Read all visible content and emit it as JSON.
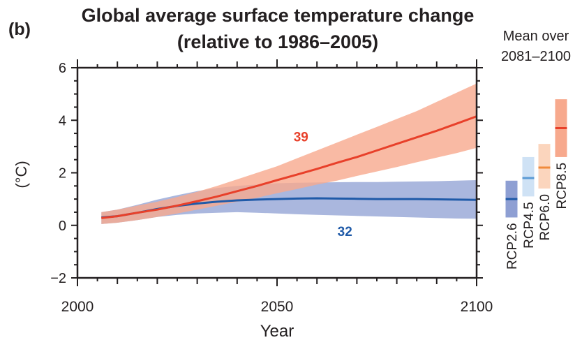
{
  "chart_data": {
    "type": "line",
    "panel_label": "(b)",
    "title": "Global average surface temperature change",
    "subtitle": "(relative to 1986–2005)",
    "xlabel": "Year",
    "ylabel": "(°C)",
    "xlim": [
      2000,
      2100
    ],
    "ylim": [
      -2,
      6
    ],
    "xticks": [
      2000,
      2050,
      2100
    ],
    "xtick_labels": [
      "2000",
      "2050",
      "2100"
    ],
    "yticks": [
      -2,
      0,
      2,
      4,
      6
    ],
    "ytick_labels": [
      "−2",
      "0",
      "2",
      "4",
      "6"
    ],
    "series": [
      {
        "name": "RCP8.5",
        "color": "#e8402a",
        "band_color": "#f7a98d",
        "model_count": "39",
        "x": [
          2006,
          2010,
          2015,
          2020,
          2025,
          2030,
          2035,
          2040,
          2045,
          2050,
          2055,
          2060,
          2065,
          2070,
          2075,
          2080,
          2085,
          2090,
          2095,
          2100
        ],
        "mean": [
          0.28,
          0.35,
          0.48,
          0.6,
          0.75,
          0.92,
          1.1,
          1.3,
          1.5,
          1.72,
          1.93,
          2.15,
          2.38,
          2.6,
          2.85,
          3.1,
          3.35,
          3.6,
          3.87,
          4.15
        ],
        "lower": [
          0.05,
          0.1,
          0.2,
          0.32,
          0.45,
          0.6,
          0.75,
          0.9,
          1.05,
          1.22,
          1.38,
          1.55,
          1.7,
          1.88,
          2.05,
          2.22,
          2.4,
          2.58,
          2.75,
          2.95
        ],
        "upper": [
          0.5,
          0.6,
          0.75,
          0.9,
          1.08,
          1.28,
          1.5,
          1.75,
          2.0,
          2.25,
          2.55,
          2.85,
          3.15,
          3.45,
          3.75,
          4.05,
          4.35,
          4.7,
          5.05,
          5.4
        ]
      },
      {
        "name": "RCP2.6",
        "color": "#1f5aa8",
        "band_color": "#8e9fd3",
        "model_count": "32",
        "x": [
          2006,
          2010,
          2015,
          2020,
          2025,
          2030,
          2035,
          2040,
          2045,
          2050,
          2055,
          2060,
          2065,
          2070,
          2075,
          2080,
          2085,
          2090,
          2095,
          2100
        ],
        "mean": [
          0.3,
          0.35,
          0.48,
          0.62,
          0.74,
          0.83,
          0.9,
          0.95,
          0.98,
          1.0,
          1.02,
          1.03,
          1.02,
          1.01,
          1.0,
          1.0,
          1.0,
          0.99,
          0.98,
          0.97
        ],
        "lower": [
          0.05,
          0.1,
          0.2,
          0.32,
          0.4,
          0.45,
          0.48,
          0.5,
          0.48,
          0.45,
          0.42,
          0.4,
          0.38,
          0.36,
          0.34,
          0.32,
          0.3,
          0.28,
          0.26,
          0.25
        ],
        "upper": [
          0.5,
          0.6,
          0.78,
          0.98,
          1.15,
          1.3,
          1.42,
          1.5,
          1.55,
          1.6,
          1.62,
          1.63,
          1.64,
          1.65,
          1.65,
          1.66,
          1.67,
          1.68,
          1.7,
          1.72
        ]
      }
    ],
    "side_panel": {
      "title_line1": "Mean over",
      "title_line2": "2081–2100",
      "bars": [
        {
          "name": "RCP2.6",
          "low": 0.3,
          "high": 1.7,
          "mean": 1.0,
          "fill": "#8e9fd3",
          "line": "#1f5aa8"
        },
        {
          "name": "RCP4.5",
          "low": 1.1,
          "high": 2.6,
          "mean": 1.8,
          "fill": "#cfe2f5",
          "line": "#5b9bd5"
        },
        {
          "name": "RCP6.0",
          "low": 1.4,
          "high": 3.1,
          "mean": 2.2,
          "fill": "#fbd5bd",
          "line": "#f08a3c"
        },
        {
          "name": "RCP8.5",
          "low": 2.6,
          "high": 4.8,
          "mean": 3.7,
          "fill": "#f7a98d",
          "line": "#e8402a"
        }
      ]
    }
  }
}
